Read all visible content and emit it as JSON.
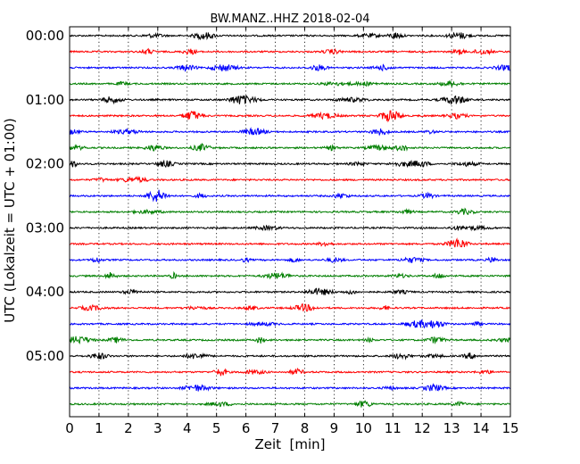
{
  "chart_data": {
    "type": "line",
    "title": "BW.MANZ..HHZ 2018-02-04",
    "xlabel": "Zeit  [min]",
    "ylabel": "UTC (Lokalzeit = UTC + 01:00)",
    "xlim": [
      0,
      15
    ],
    "x_ticks": [
      "0",
      "1",
      "2",
      "3",
      "4",
      "5",
      "6",
      "7",
      "8",
      "9",
      "10",
      "11",
      "12",
      "13",
      "14",
      "15"
    ],
    "y_tick_labels": [
      "00:00",
      "01:00",
      "02:00",
      "03:00",
      "04:00",
      "05:00"
    ],
    "rows_per_hour": 4,
    "minutes_per_row": 15,
    "grid": "vertical dotted lines at each minute",
    "legend": "none",
    "trace_colors": [
      "#000000",
      "#ff0000",
      "#0000ff",
      "#007f00"
    ],
    "series": [
      {
        "start": "00:00"
      },
      {
        "start": "00:15"
      },
      {
        "start": "00:30"
      },
      {
        "start": "00:45"
      },
      {
        "start": "01:00"
      },
      {
        "start": "01:15"
      },
      {
        "start": "01:30"
      },
      {
        "start": "01:45"
      },
      {
        "start": "02:00"
      },
      {
        "start": "02:15"
      },
      {
        "start": "02:30"
      },
      {
        "start": "02:45"
      },
      {
        "start": "03:00"
      },
      {
        "start": "03:15"
      },
      {
        "start": "03:30"
      },
      {
        "start": "03:45"
      },
      {
        "start": "04:00"
      },
      {
        "start": "04:15"
      },
      {
        "start": "04:30"
      },
      {
        "start": "04:45"
      },
      {
        "start": "05:00"
      },
      {
        "start": "05:15"
      },
      {
        "start": "05:30"
      },
      {
        "start": "05:45"
      }
    ]
  }
}
